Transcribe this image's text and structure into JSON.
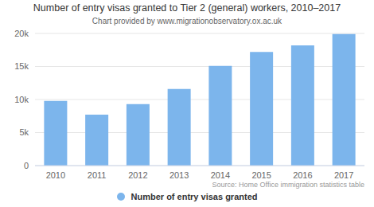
{
  "chart_data": {
    "type": "bar",
    "title": "Number of entry visas granted to Tier 2 (general) workers, 2010–2017",
    "subtitle": "Chart provided by www.migrationobservatory.ox.ac.uk",
    "source": "Source: Home Office immigration statistics table",
    "categories": [
      "2010",
      "2011",
      "2012",
      "2013",
      "2014",
      "2015",
      "2016",
      "2017"
    ],
    "series": [
      {
        "name": "Number of entry visas granted",
        "color": "#7cb5ec",
        "values": [
          9800,
          7700,
          9300,
          11600,
          15100,
          17200,
          18200,
          19900
        ]
      }
    ],
    "ylim": [
      0,
      20000
    ],
    "yticks": [
      0,
      {
        "value": 5000,
        "label": "5k"
      },
      {
        "value": 10000,
        "label": "10k"
      },
      {
        "value": 15000,
        "label": "15k"
      },
      {
        "value": 20000,
        "label": "20k"
      }
    ],
    "grid": true,
    "legend": "bottom"
  }
}
